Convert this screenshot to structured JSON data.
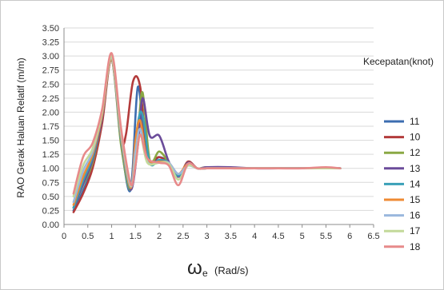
{
  "chart_data": {
    "type": "line",
    "title": "",
    "ylabel": "RAO Gerak  Haluan Relatif  (m/m)",
    "xlabel": {
      "symbol": "ω",
      "subscript": "e",
      "unit": "(Rad/s)"
    },
    "xlim": [
      0,
      6.5
    ],
    "ylim": [
      0,
      3.5
    ],
    "xticks": [
      "0",
      "0.5",
      "1",
      "1.5",
      "2",
      "2.5",
      "3",
      "3.5",
      "4",
      "4.5",
      "5",
      "5.5",
      "6",
      "6.5"
    ],
    "yticks": [
      "0.00",
      "0.25",
      "0.50",
      "0.75",
      "1.00",
      "1.25",
      "1.50",
      "1.75",
      "2.00",
      "2.25",
      "2.50",
      "2.75",
      "3.00",
      "3.25",
      "3.50"
    ],
    "grid": "horizontal",
    "legend_title": "Kecepatan(knot)",
    "legend_position": "right",
    "series": [
      {
        "name": "11",
        "color": "#3c6db0",
        "x": [
          0.2,
          0.4,
          0.6,
          0.8,
          1.0,
          1.2,
          1.4,
          1.55,
          1.7,
          1.85,
          2.0,
          2.2,
          2.4,
          2.6,
          2.8,
          3.0,
          3.5,
          4.0,
          4.5,
          5.0,
          5.5,
          5.8
        ],
        "y": [
          0.25,
          0.6,
          1.05,
          1.85,
          2.95,
          1.45,
          0.62,
          2.45,
          1.3,
          1.1,
          1.2,
          1.1,
          0.85,
          1.1,
          1.0,
          1.0,
          1.0,
          1.0,
          1.0,
          1.0,
          1.0,
          1.0
        ]
      },
      {
        "name": "10",
        "color": "#b33b3b",
        "x": [
          0.2,
          0.4,
          0.6,
          0.8,
          1.0,
          1.2,
          1.3,
          1.45,
          1.6,
          1.75,
          2.0,
          2.2,
          2.4,
          2.6,
          2.8,
          3.0,
          3.5,
          4.0,
          4.5,
          5.0,
          5.5,
          5.8
        ],
        "y": [
          0.22,
          0.55,
          1.0,
          1.8,
          2.95,
          1.55,
          1.6,
          2.55,
          2.45,
          1.2,
          1.2,
          1.1,
          0.85,
          1.12,
          1.0,
          1.0,
          1.0,
          1.0,
          1.0,
          1.0,
          1.0,
          1.0
        ]
      },
      {
        "name": "12",
        "color": "#8aa844",
        "x": [
          0.2,
          0.4,
          0.6,
          0.8,
          1.0,
          1.2,
          1.4,
          1.55,
          1.65,
          1.8,
          2.0,
          2.2,
          2.4,
          2.6,
          2.8,
          3.0,
          3.5,
          4.0,
          4.5,
          5.0,
          5.5,
          5.8
        ],
        "y": [
          0.3,
          0.7,
          1.1,
          1.9,
          2.95,
          1.4,
          0.62,
          1.6,
          2.35,
          1.15,
          1.3,
          1.1,
          0.85,
          1.1,
          1.0,
          1.02,
          1.0,
          1.0,
          1.0,
          1.0,
          1.0,
          1.0
        ]
      },
      {
        "name": "13",
        "color": "#6b4c9a",
        "x": [
          0.2,
          0.4,
          0.6,
          0.8,
          1.0,
          1.2,
          1.4,
          1.55,
          1.65,
          1.8,
          2.0,
          2.2,
          2.4,
          2.6,
          2.8,
          3.0,
          3.5,
          4.0,
          4.5,
          5.0,
          5.5,
          5.8
        ],
        "y": [
          0.3,
          0.72,
          1.15,
          1.9,
          2.95,
          1.5,
          0.62,
          1.4,
          2.25,
          1.58,
          1.58,
          1.12,
          0.85,
          1.1,
          1.0,
          1.02,
          1.02,
          1.0,
          1.0,
          1.0,
          1.0,
          1.0
        ]
      },
      {
        "name": "14",
        "color": "#3aa0b7",
        "x": [
          0.2,
          0.4,
          0.6,
          0.8,
          1.0,
          1.2,
          1.4,
          1.55,
          1.65,
          1.8,
          2.0,
          2.2,
          2.4,
          2.6,
          2.8,
          3.0,
          3.5,
          4.0,
          4.5,
          5.0,
          5.5,
          5.8
        ],
        "y": [
          0.3,
          0.78,
          1.2,
          1.95,
          2.95,
          1.5,
          0.65,
          1.8,
          1.95,
          1.1,
          1.15,
          1.1,
          0.87,
          1.08,
          1.0,
          1.0,
          1.0,
          1.0,
          1.0,
          1.0,
          1.0,
          1.0
        ]
      },
      {
        "name": "15",
        "color": "#ef8a33",
        "x": [
          0.2,
          0.4,
          0.6,
          0.8,
          1.0,
          1.2,
          1.4,
          1.5,
          1.6,
          1.75,
          2.0,
          2.2,
          2.4,
          2.6,
          2.8,
          3.0,
          3.5,
          4.0,
          4.5,
          5.0,
          5.5,
          5.8
        ],
        "y": [
          0.35,
          0.85,
          1.25,
          1.95,
          2.95,
          1.55,
          0.65,
          1.5,
          1.85,
          1.15,
          1.12,
          1.1,
          0.9,
          1.08,
          1.0,
          1.0,
          1.0,
          1.0,
          1.0,
          1.0,
          1.0,
          1.0
        ]
      },
      {
        "name": "16",
        "color": "#9ab8dd",
        "x": [
          0.2,
          0.4,
          0.6,
          0.8,
          1.0,
          1.2,
          1.4,
          1.5,
          1.6,
          1.75,
          2.0,
          2.2,
          2.4,
          2.6,
          2.8,
          3.0,
          3.5,
          4.0,
          4.5,
          5.0,
          5.5,
          5.8
        ],
        "y": [
          0.4,
          0.95,
          1.3,
          2.0,
          2.98,
          1.6,
          0.68,
          1.3,
          1.7,
          1.12,
          1.1,
          1.1,
          0.9,
          1.05,
          1.0,
          1.0,
          1.0,
          1.0,
          1.0,
          1.0,
          1.0,
          1.0
        ]
      },
      {
        "name": "17",
        "color": "#c3d99a",
        "x": [
          0.2,
          0.4,
          0.6,
          0.8,
          1.0,
          1.2,
          1.4,
          1.5,
          1.6,
          1.75,
          2.0,
          2.2,
          2.4,
          2.6,
          2.8,
          3.0,
          3.5,
          4.0,
          4.5,
          5.0,
          5.5,
          5.8
        ],
        "y": [
          0.5,
          1.05,
          1.35,
          2.0,
          3.0,
          1.65,
          0.7,
          1.1,
          1.6,
          1.1,
          1.1,
          1.08,
          0.8,
          1.05,
          1.0,
          1.0,
          1.0,
          1.0,
          1.0,
          1.0,
          1.0,
          1.0
        ]
      },
      {
        "name": "18",
        "color": "#e78a8a",
        "x": [
          0.2,
          0.4,
          0.6,
          0.8,
          1.0,
          1.2,
          1.4,
          1.5,
          1.6,
          1.75,
          2.0,
          2.2,
          2.4,
          2.6,
          2.8,
          3.0,
          3.5,
          4.0,
          4.5,
          5.0,
          5.5,
          5.8
        ],
        "y": [
          0.55,
          1.2,
          1.45,
          2.05,
          3.05,
          1.7,
          0.72,
          1.05,
          1.6,
          1.18,
          1.1,
          1.05,
          0.7,
          1.08,
          1.0,
          1.0,
          1.0,
          1.0,
          1.0,
          1.0,
          1.02,
          1.0
        ]
      }
    ]
  }
}
